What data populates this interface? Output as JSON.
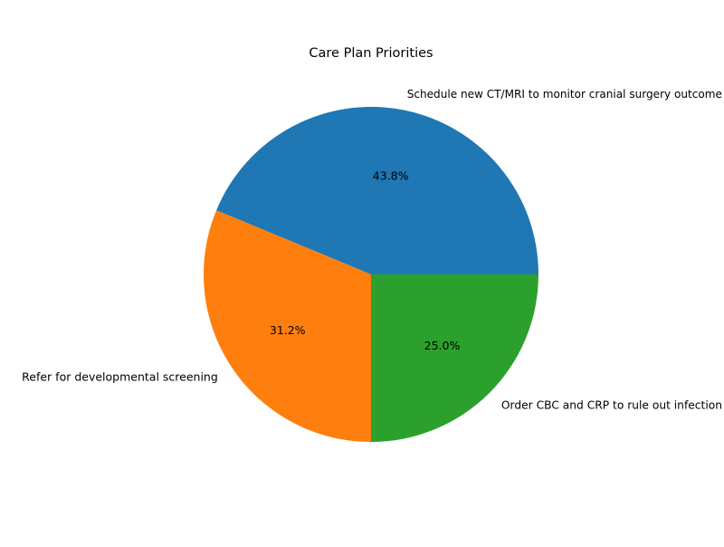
{
  "chart_data": {
    "type": "pie",
    "title": "Care Plan Priorities",
    "slices": [
      {
        "label": "Schedule new CT/MRI to monitor cranial surgery outcome",
        "value": 43.75,
        "pct_text": "43.8%",
        "color": "#1f77b4"
      },
      {
        "label": "Refer for developmental screening",
        "value": 31.25,
        "pct_text": "31.2%",
        "color": "#ff7f0e"
      },
      {
        "label": "Order CBC and CRP to rule out infection",
        "value": 25.0,
        "pct_text": "25.0%",
        "color": "#2ca02c"
      }
    ],
    "start_angle_deg": 0,
    "direction": "counterclockwise",
    "legend": "none"
  }
}
